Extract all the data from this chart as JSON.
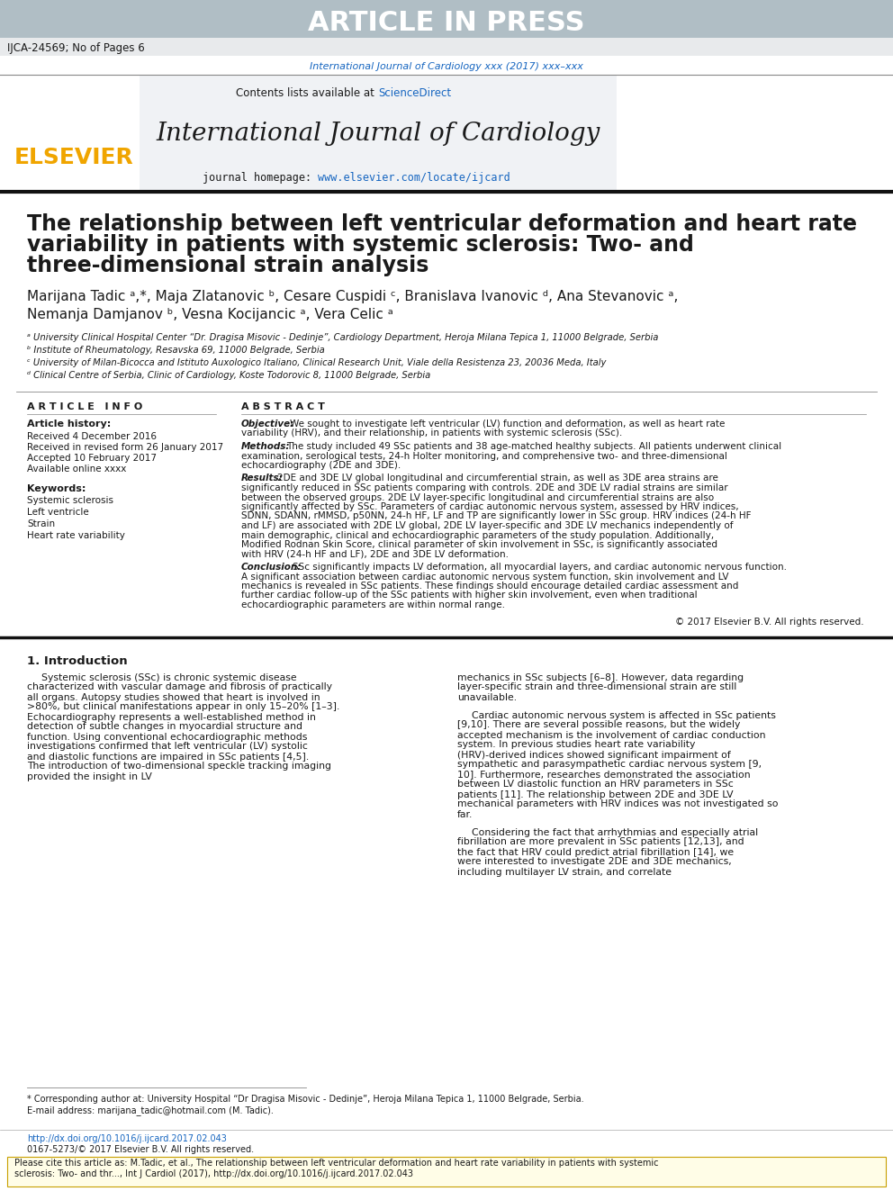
{
  "article_in_press_text": "ARTICLE IN PRESS",
  "article_in_press_bg": "#b0bec5",
  "header_id": "IJCA-24569; No of Pages 6",
  "journal_ref_line": "International Journal of Cardiology xxx (2017) xxx–xxx",
  "journal_ref_color": "#1565c0",
  "header_box_bg": "#f0f2f5",
  "contents_text": "Contents lists available at ",
  "sciencedirect_text": "ScienceDirect",
  "sciencedirect_color": "#1565c0",
  "journal_title": "International Journal of Cardiology",
  "journal_homepage_prefix": "journal homepage: ",
  "journal_homepage_url": "www.elsevier.com/locate/ijcard",
  "journal_homepage_color": "#1565c0",
  "elsevier_color": "#f0a500",
  "paper_title_line1": "The relationship between left ventricular deformation and heart rate",
  "paper_title_line2": "variability in patients with systemic sclerosis: Two- and",
  "paper_title_line3": "three-dimensional strain analysis",
  "authors_line1": "Marijana Tadic ᵃ,*, Maja Zlatanovic ᵇ, Cesare Cuspidi ᶜ, Branislava Ivanovic ᵈ, Ana Stevanovic ᵃ,",
  "authors_line2": "Nemanja Damjanov ᵇ, Vesna Kocijancic ᵃ, Vera Celic ᵃ",
  "affil_a": "ᵃ University Clinical Hospital Center “Dr. Dragisa Misovic - Dedinje”, Cardiology Department, Heroja Milana Tepica 1, 11000 Belgrade, Serbia",
  "affil_b": "ᵇ Institute of Rheumatology, Resavska 69, 11000 Belgrade, Serbia",
  "affil_c": "ᶜ University of Milan-Bicocca and Istituto Auxologico Italiano, Clinical Research Unit, Viale della Resistenza 23, 20036 Meda, Italy",
  "affil_d": "ᵈ Clinical Centre of Serbia, Clinic of Cardiology, Koste Todorovic 8, 11000 Belgrade, Serbia",
  "article_info_title": "A R T I C L E   I N F O",
  "article_history_title": "Article history:",
  "received_text": "Received 4 December 2016",
  "revised_text": "Received in revised form 26 January 2017",
  "accepted_text": "Accepted 10 February 2017",
  "available_text": "Available online xxxx",
  "keywords_title": "Keywords:",
  "keyword1": "Systemic sclerosis",
  "keyword2": "Left ventricle",
  "keyword3": "Strain",
  "keyword4": "Heart rate variability",
  "abstract_title": "A B S T R A C T",
  "objective_label": "Objective:",
  "objective_text": "We sought to investigate left ventricular (LV) function and deformation, as well as heart rate variability (HRV), and their relationship, in patients with systemic sclerosis (SSc).",
  "methods_label": "Methods:",
  "methods_text": "The study included 49 SSc patients and 38 age-matched healthy subjects. All patients underwent clinical examination, serological tests, 24-h Holter monitoring, and comprehensive two- and three-dimensional echocardiography (2DE and 3DE).",
  "results_label": "Results:",
  "results_text": "2DE and 3DE LV global longitudinal and circumferential strain, as well as 3DE area strains are significantly reduced in SSc patients comparing with controls. 2DE and 3DE LV radial strains are similar between the observed groups. 2DE LV layer-specific longitudinal and circumferential strains are also significantly affected by SSc. Parameters of cardiac autonomic nervous system, assessed by HRV indices, SDNN, SDANN, rMMSD, p50NN, 24-h HF, LF and TP are significantly lower in SSc group. HRV indices (24-h HF and LF) are associated with 2DE LV global, 2DE LV layer-specific and 3DE LV mechanics independently of main demographic, clinical and echocardiographic parameters of the study population. Additionally, Modified Rodnan Skin Score, clinical parameter of skin involvement in SSc, is significantly associated with HRV (24-h HF and LF), 2DE and 3DE LV deformation.",
  "conclusion_label": "Conclusion:",
  "conclusion_text": "SSc significantly impacts LV deformation, all myocardial layers, and cardiac autonomic nervous function. A significant association between cardiac autonomic nervous system function, skin involvement and LV mechanics is revealed in SSc patients. These findings should encourage detailed cardiac assessment and further cardiac follow-up of the SSc patients with higher skin involvement, even when traditional echocardiographic parameters are within normal range.",
  "copyright_text": "© 2017 Elsevier B.V. All rights reserved.",
  "intro_title": "1. Introduction",
  "intro_col1_para1": "Systemic sclerosis (SSc) is chronic systemic disease characterized with vascular damage and fibrosis of practically all organs. Autopsy studies showed that heart is involved in >80%, but clinical manifestations appear in only 15–20% [1–3]. Echocardiography represents a well-established method in detection of subtle changes in myocardial structure and function. Using conventional echocardiographic methods investigations confirmed that left ventricular (LV) systolic and diastolic functions are impaired in SSc patients [4,5]. The introduction of two-dimensional speckle tracking imaging provided the insight in LV",
  "intro_col2_para1": "mechanics in SSc subjects [6–8]. However, data regarding layer-specific strain and three-dimensional strain are still unavailable.",
  "intro_col2_para2": "Cardiac autonomic nervous system is affected in SSc patients [9,10]. There are several possible reasons, but the widely accepted mechanism is the involvement of cardiac conduction system. In previous studies heart rate variability (HRV)-derived indices showed significant impairment of sympathetic and parasympathetic cardiac nervous system [9, 10]. Furthermore, researches demonstrated the association between LV diastolic function an HRV parameters in SSc patients [11]. The relationship between 2DE and 3DE LV mechanical parameters with HRV indices was not investigated so far.",
  "intro_col2_para3": "Considering the fact that arrhythmias and especially atrial fibrillation are more prevalent in SSc patients [12,13], and the fact that HRV could predict atrial fibrillation [14], we were interested to investigate 2DE and 3DE mechanics, including multilayer LV strain, and correlate",
  "footnote_star": "* Corresponding author at: University Hospital “Dr Dragisa Misovic - Dedinje”, Heroja Milana Tepica 1, 11000 Belgrade, Serbia.",
  "footnote_email": "E-mail address: marijana_tadic@hotmail.com (M. Tadic).",
  "footer_doi": "http://dx.doi.org/10.1016/j.ijcard.2017.02.043",
  "footer_issn": "0167-5273/© 2017 Elsevier B.V. All rights reserved.",
  "cite_box_text1": "Please cite this article as: M.Tadic, et al., The relationship between left ventricular deformation and heart rate variability in patients with systemic",
  "cite_box_text2": "sclerosis: Two- and thr..., Int J Cardiol (2017), http://dx.doi.org/10.1016/j.ijcard.2017.02.043",
  "bg_white": "#ffffff",
  "text_black": "#000000",
  "text_dark": "#1a1a1a",
  "line_color": "#333333",
  "light_gray": "#e8eaec"
}
